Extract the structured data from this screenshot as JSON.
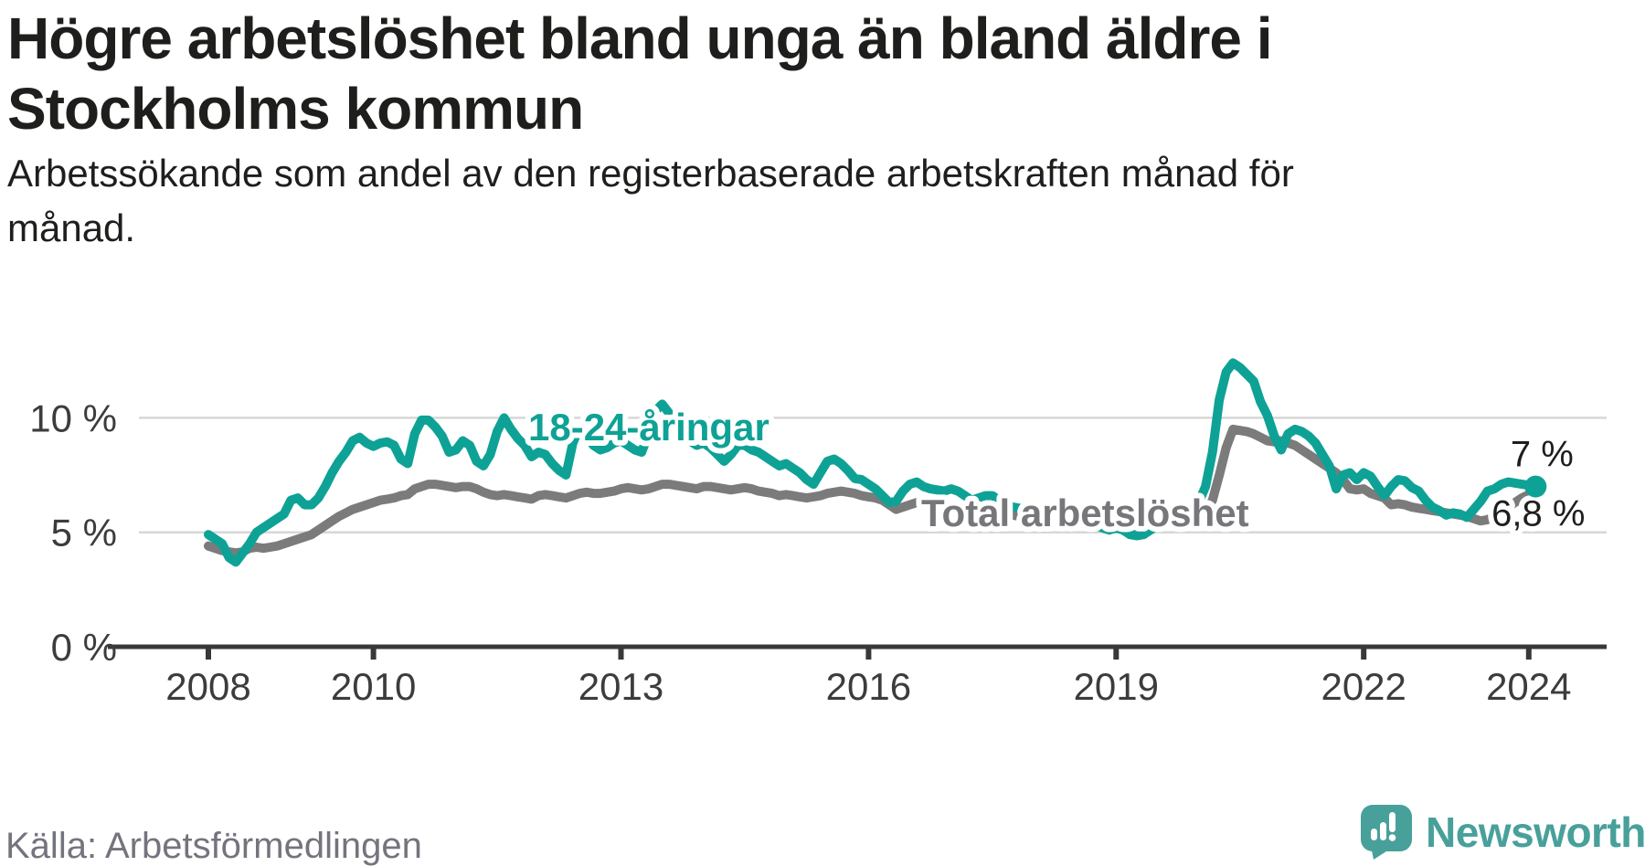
{
  "header": {
    "title_lines": [
      "Högre arbetslöshet bland unga än bland äldre i",
      "Stockholms kommun"
    ],
    "subtitle_lines": [
      "Arbetssökande som andel av den registerbaserade arbetskraften månad för",
      "månad."
    ]
  },
  "footer": {
    "source": "Källa: Arbetsförmedlingen",
    "logo_text": "Newsworthy"
  },
  "colors": {
    "youth_line": "#0ea296",
    "total_line": "#7b7b7b",
    "total_label": "#77777b",
    "logo_teal": "#48a09b",
    "grid": "#d7d7d7",
    "axis": "#383838",
    "text_dark": "#1e1e1c"
  },
  "chart_data": {
    "type": "line",
    "title": "Högre arbetslöshet bland unga än bland äldre i Stockholms kommun",
    "subtitle": "Arbetssökande som andel av den registerbaserade arbetskraften månad för månad.",
    "x_axis": {
      "ticks": [
        2008,
        2010,
        2013,
        2016,
        2019,
        2022,
        2024
      ],
      "tick_labels": [
        "2008",
        "2010",
        "2013",
        "2016",
        "2019",
        "2022",
        "2024"
      ],
      "range": [
        2008.0,
        2024.083
      ]
    },
    "y_axis": {
      "tick_values": [
        0,
        5,
        10
      ],
      "tick_labels": [
        "0 %",
        "5 %",
        "10 %"
      ],
      "range": [
        0,
        12.5
      ],
      "grid": true
    },
    "x_start_year": 2008,
    "x_step_months": 1,
    "series": [
      {
        "name": "18-24-åringar",
        "color": "#0ea296",
        "end_label": "7 %",
        "end_value": 7.0,
        "values": [
          4.9,
          4.7,
          4.5,
          3.9,
          3.7,
          4.1,
          4.5,
          5.0,
          5.2,
          5.4,
          5.6,
          5.8,
          6.4,
          6.5,
          6.2,
          6.2,
          6.5,
          7.0,
          7.6,
          8.1,
          8.5,
          9.0,
          9.15,
          8.9,
          8.75,
          8.9,
          8.95,
          8.8,
          8.2,
          8.0,
          9.3,
          9.9,
          9.9,
          9.6,
          9.2,
          8.5,
          8.6,
          9.0,
          8.8,
          8.1,
          7.9,
          8.4,
          9.4,
          10.0,
          9.5,
          9.1,
          8.8,
          8.3,
          8.5,
          8.4,
          8.0,
          7.7,
          7.5,
          8.9,
          9.6,
          9.2,
          8.8,
          8.6,
          8.7,
          8.9,
          9.0,
          8.8,
          8.6,
          8.5,
          9.3,
          10.3,
          10.6,
          10.2,
          9.6,
          9.2,
          9.0,
          8.8,
          8.9,
          8.7,
          8.4,
          8.1,
          8.4,
          8.8,
          8.8,
          8.6,
          8.5,
          8.3,
          8.1,
          7.9,
          8.0,
          7.8,
          7.6,
          7.3,
          7.1,
          7.6,
          8.1,
          8.2,
          8.0,
          7.7,
          7.35,
          7.3,
          7.1,
          6.9,
          6.6,
          6.3,
          6.35,
          6.8,
          7.1,
          7.2,
          7.0,
          6.9,
          6.85,
          6.8,
          6.9,
          6.8,
          6.6,
          6.4,
          6.5,
          6.6,
          6.6,
          6.4,
          6.2,
          6.1,
          6.05,
          6.0,
          6.1,
          6.0,
          5.8,
          5.6,
          5.5,
          5.6,
          5.7,
          5.6,
          5.4,
          5.3,
          5.2,
          5.1,
          5.2,
          5.1,
          4.9,
          4.85,
          4.9,
          5.1,
          5.3,
          5.4,
          5.5,
          5.6,
          5.7,
          5.9,
          6.3,
          7.0,
          8.5,
          10.8,
          12.0,
          12.4,
          12.2,
          11.9,
          11.6,
          10.7,
          10.1,
          9.2,
          8.6,
          9.3,
          9.5,
          9.4,
          9.2,
          8.9,
          8.4,
          7.9,
          6.9,
          7.5,
          7.6,
          7.3,
          7.6,
          7.45,
          7.0,
          6.6,
          7.0,
          7.3,
          7.25,
          6.95,
          6.8,
          6.4,
          6.1,
          5.95,
          5.75,
          5.85,
          5.8,
          5.65,
          6.0,
          6.35,
          6.8,
          6.9,
          7.1,
          7.2,
          7.15,
          7.1,
          7.05,
          7.0
        ]
      },
      {
        "name": "Total arbetslöshet",
        "color": "#7b7b7b",
        "end_label": "6,8 %",
        "end_value": 6.8,
        "values": [
          4.4,
          4.3,
          4.2,
          4.15,
          4.1,
          4.15,
          4.3,
          4.35,
          4.3,
          4.35,
          4.4,
          4.5,
          4.6,
          4.7,
          4.8,
          4.9,
          5.1,
          5.3,
          5.5,
          5.7,
          5.85,
          6.0,
          6.1,
          6.2,
          6.3,
          6.4,
          6.45,
          6.5,
          6.6,
          6.65,
          6.9,
          7.0,
          7.1,
          7.1,
          7.05,
          7.0,
          6.95,
          7.0,
          7.0,
          6.9,
          6.75,
          6.65,
          6.6,
          6.65,
          6.6,
          6.55,
          6.5,
          6.45,
          6.6,
          6.65,
          6.6,
          6.55,
          6.5,
          6.6,
          6.7,
          6.75,
          6.7,
          6.7,
          6.75,
          6.8,
          6.9,
          6.95,
          6.9,
          6.85,
          6.9,
          7.0,
          7.1,
          7.1,
          7.05,
          7.0,
          6.95,
          6.9,
          7.0,
          7.0,
          6.95,
          6.9,
          6.85,
          6.9,
          6.95,
          6.9,
          6.8,
          6.75,
          6.7,
          6.6,
          6.65,
          6.6,
          6.55,
          6.5,
          6.55,
          6.6,
          6.7,
          6.75,
          6.8,
          6.75,
          6.7,
          6.6,
          6.55,
          6.5,
          6.4,
          6.2,
          6.0,
          6.1,
          6.2,
          6.3,
          6.25,
          6.2,
          6.15,
          6.1,
          6.1,
          6.05,
          6.0,
          5.95,
          5.95,
          5.9,
          5.9,
          5.85,
          5.8,
          5.75,
          5.7,
          5.7,
          5.7,
          5.65,
          5.6,
          5.55,
          5.5,
          5.5,
          5.5,
          5.45,
          5.4,
          5.4,
          5.35,
          5.35,
          5.35,
          5.3,
          5.3,
          5.25,
          5.3,
          5.3,
          5.35,
          5.4,
          5.4,
          5.45,
          5.5,
          5.55,
          5.7,
          5.9,
          6.4,
          7.5,
          8.7,
          9.5,
          9.45,
          9.4,
          9.3,
          9.15,
          9.0,
          8.95,
          9.0,
          8.9,
          8.8,
          8.6,
          8.4,
          8.2,
          8.0,
          7.8,
          7.6,
          7.3,
          6.9,
          6.85,
          6.9,
          6.7,
          6.6,
          6.5,
          6.2,
          6.25,
          6.2,
          6.1,
          6.05,
          6.0,
          5.95,
          5.9,
          5.85,
          5.8,
          5.75,
          5.7,
          5.6,
          5.5,
          5.55,
          5.7,
          5.9,
          6.1,
          6.3,
          6.5,
          6.65,
          6.8
        ]
      }
    ],
    "legend_position": "inline-labels-on-chart"
  }
}
